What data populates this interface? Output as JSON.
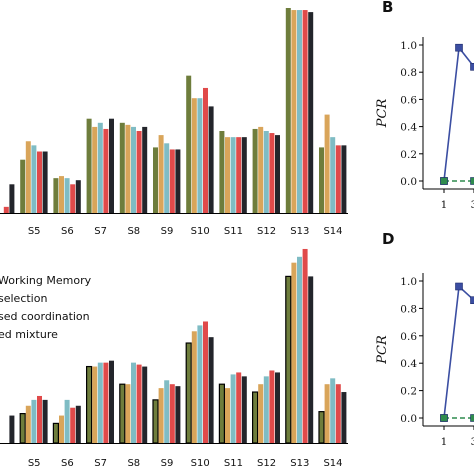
{
  "chart_data": [
    {
      "type": "bar",
      "panel": "top-left",
      "categories": [
        "S4",
        "S5",
        "S6",
        "S7",
        "S8",
        "S9",
        "S10",
        "S11",
        "S12",
        "S13",
        "S14"
      ],
      "category_labels": [
        "",
        "S5",
        "S6",
        "S7",
        "S8",
        "S9",
        "S10",
        "S11",
        "S12",
        "S13",
        "S14"
      ],
      "series_colors": [
        "#6e7d3c",
        "#d9a55a",
        "#7fbcc4",
        "#e04a4a",
        "#23252b"
      ],
      "series": [
        {
          "values": [
            null,
            0.26,
            0.17,
            0.46,
            0.44,
            0.32,
            0.67,
            0.4,
            0.41,
            1.0,
            0.32
          ]
        },
        {
          "values": [
            null,
            0.35,
            0.18,
            0.42,
            0.43,
            0.38,
            0.56,
            0.37,
            0.42,
            0.99,
            0.48
          ]
        },
        {
          "values": [
            null,
            0.33,
            0.17,
            0.44,
            0.42,
            0.34,
            0.56,
            0.37,
            0.4,
            0.99,
            0.37
          ]
        },
        {
          "values": [
            0.03,
            0.3,
            0.14,
            0.41,
            0.4,
            0.31,
            0.61,
            0.37,
            0.39,
            0.99,
            0.33
          ]
        },
        {
          "values": [
            0.14,
            0.3,
            0.16,
            0.46,
            0.42,
            0.31,
            0.52,
            0.37,
            0.38,
            0.98,
            0.33
          ]
        }
      ],
      "ylim": [
        0,
        1
      ]
    },
    {
      "type": "bar",
      "panel": "bottom-left",
      "categories": [
        "S4",
        "S5",
        "S6",
        "S7",
        "S8",
        "S9",
        "S10",
        "S11",
        "S12",
        "S13",
        "S14"
      ],
      "category_labels": [
        "",
        "S5",
        "S6",
        "S7",
        "S8",
        "S9",
        "S10",
        "S11",
        "S12",
        "S13",
        "S14"
      ],
      "series_colors": [
        "#6e7d3c",
        "#d9a55a",
        "#7fbcc4",
        "#e04a4a",
        "#23252b"
      ],
      "series": [
        {
          "values": [
            null,
            0.15,
            0.1,
            0.39,
            0.3,
            0.22,
            0.51,
            0.3,
            0.26,
            0.85,
            0.16
          ]
        },
        {
          "values": [
            null,
            0.19,
            0.14,
            0.39,
            0.3,
            0.28,
            0.57,
            0.28,
            0.3,
            0.92,
            0.3
          ]
        },
        {
          "values": [
            null,
            0.22,
            0.22,
            0.41,
            0.41,
            0.32,
            0.6,
            0.35,
            0.34,
            0.95,
            0.33
          ]
        },
        {
          "values": [
            null,
            0.24,
            0.18,
            0.41,
            0.4,
            0.3,
            0.62,
            0.36,
            0.37,
            0.99,
            0.3
          ]
        },
        {
          "values": [
            0.14,
            0.22,
            0.19,
            0.42,
            0.39,
            0.29,
            0.54,
            0.34,
            0.36,
            0.85,
            0.26
          ]
        }
      ],
      "ylim": [
        0,
        1
      ],
      "legend": {
        "position": "upper-left",
        "entries": [
          "Working Memory",
          "selection",
          "sed coordination",
          "ed mixture"
        ]
      }
    },
    {
      "type": "line",
      "panel": "B",
      "ylabel": "PCR",
      "ylim": [
        0,
        1.0
      ],
      "yticks": [
        "0.0",
        "0.2",
        "0.4",
        "0.6",
        "0.8",
        "1.0"
      ],
      "xticks": [
        "1",
        "3"
      ],
      "series": [
        {
          "color": "#3b4ea2",
          "x": [
            1,
            2,
            3
          ],
          "y": [
            0.0,
            0.98,
            0.84
          ]
        },
        {
          "color": "#2f8c4e",
          "dashed": true,
          "x": [
            1,
            3
          ],
          "y": [
            0.0,
            0.0
          ]
        }
      ]
    },
    {
      "type": "line",
      "panel": "D",
      "ylabel": "PCR",
      "ylim": [
        0,
        1.0
      ],
      "yticks": [
        "0.0",
        "0.2",
        "0.4",
        "0.6",
        "0.8",
        "1.0"
      ],
      "xticks": [
        "1",
        "3"
      ],
      "series": [
        {
          "color": "#3b4ea2",
          "x": [
            1,
            2,
            3
          ],
          "y": [
            0.0,
            0.96,
            0.86
          ]
        },
        {
          "color": "#2f8c4e",
          "dashed": true,
          "x": [
            1,
            3
          ],
          "y": [
            0.0,
            0.0
          ]
        }
      ]
    }
  ],
  "panel_letters": {
    "b": "B",
    "d": "D"
  }
}
